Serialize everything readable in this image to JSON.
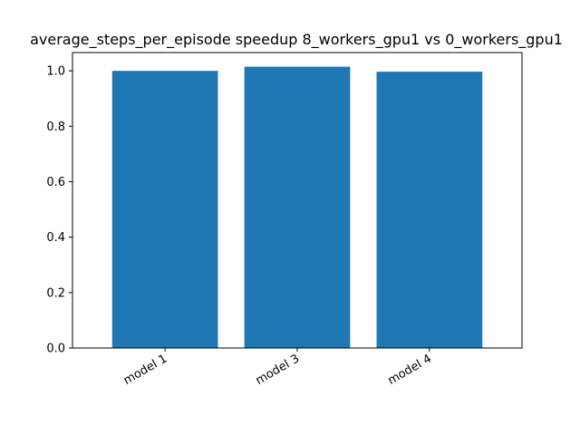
{
  "chart_data": {
    "type": "bar",
    "title": "average_steps_per_episode speedup 8_workers_gpu1 vs 0_workers_gpu1",
    "xlabel": "",
    "ylabel": "",
    "categories": [
      "model 1",
      "model 3",
      "model 4"
    ],
    "values": [
      1.0,
      1.015,
      0.997
    ],
    "ylim": [
      0,
      1.066
    ],
    "yticks": [
      0.0,
      0.2,
      0.4,
      0.6,
      0.8,
      1.0
    ],
    "ytick_labels": [
      "0.0",
      "0.2",
      "0.4",
      "0.6",
      "0.8",
      "1.0"
    ],
    "bar_color": "#1f77b4",
    "grid": false,
    "legend": "none"
  }
}
